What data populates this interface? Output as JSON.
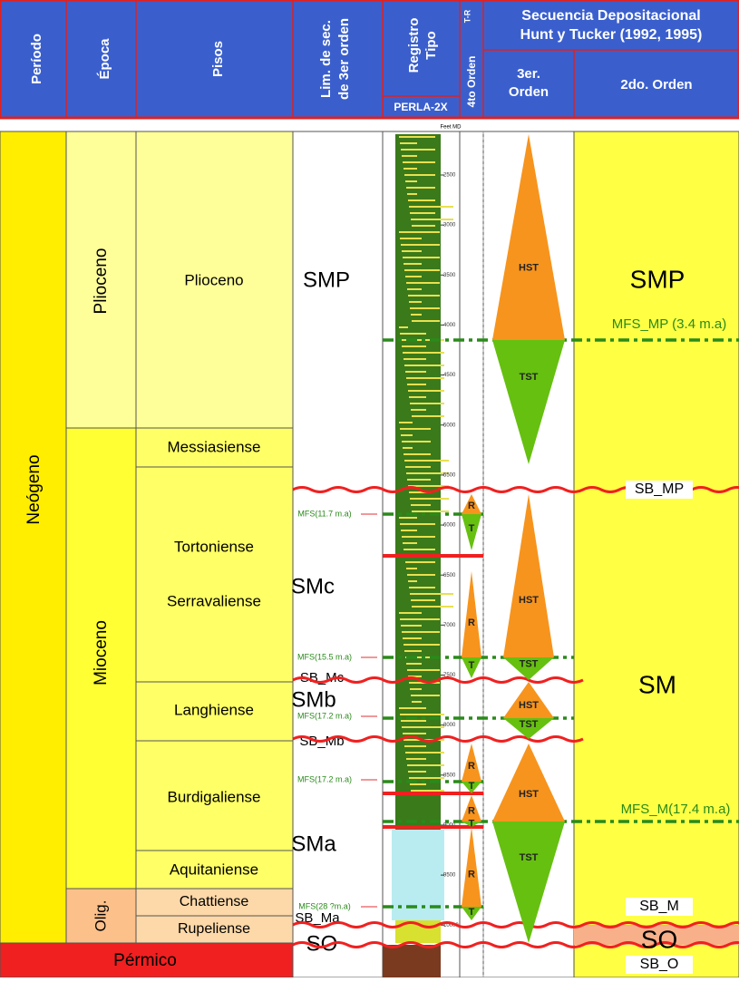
{
  "header": {
    "periodo": "Período",
    "epoca": "Época",
    "pisos": "Pisos",
    "lim_sec": [
      "Lim. de sec.",
      "de 3er orden"
    ],
    "registro": [
      "Registro",
      "Tipo"
    ],
    "well": "PERLA-2X",
    "tr": "T-R",
    "cuarto_orden": "4to Orden",
    "secuencia": [
      "Secuencia Depositacional",
      "Hunt y Tucker (1992, 1995)"
    ],
    "tercer_orden": [
      "3er.",
      "Orden"
    ],
    "segundo_orden": "2do. Orden"
  },
  "periods": [
    "Neógeno",
    "Pérmico"
  ],
  "epochs": [
    "Plioceno",
    "Mioceno",
    "Olig."
  ],
  "stages": [
    "Plioceno",
    "Messiasiense",
    "Tortoniense",
    "Serravaliense",
    "Langhiense",
    "Burdigaliense",
    "Aquitaniense",
    "Chattiense",
    "Rupeliense"
  ],
  "sequences": [
    "SMP",
    "SMc",
    "SMb",
    "SMa",
    "SO"
  ],
  "boundaries": [
    "SB_Mc",
    "SB_Mb",
    "SB_Ma"
  ],
  "mfs_labels": [
    "MFS(11.7 m.a)",
    "MFS(15.5 m.a)",
    "MFS(17.2 m.a)",
    "MFS(17.2 m.a)",
    "MFS(28 ?m.a)"
  ],
  "depth_unit": "Feet MD",
  "depth_ticks": [
    2500,
    3000,
    3500,
    4000,
    4500,
    5000,
    5500,
    6000,
    6500,
    7000,
    7500,
    8000,
    8500,
    9000,
    9500,
    10000
  ],
  "fourth_order_labels": [
    "R",
    "T",
    "R",
    "T",
    "R",
    "T",
    "R",
    "T",
    "R",
    "T"
  ],
  "third_order_labels": [
    "HST",
    "TST",
    "HST",
    "TST",
    "HST",
    "TST",
    "HST",
    "TST"
  ],
  "second_order": {
    "sequences": [
      "SMP",
      "SM",
      "SO"
    ],
    "mfs": [
      "MFS_MP (3.4 m.a)",
      "MFS_M(17.4 m.a)"
    ],
    "boundaries": [
      "SB_MP",
      "SB_M",
      "SB_O"
    ]
  }
}
